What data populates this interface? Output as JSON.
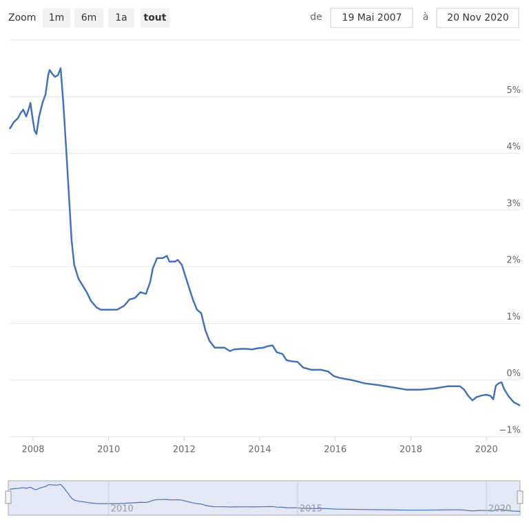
{
  "toolbar": {
    "zoom_label": "Zoom",
    "buttons": [
      "1m",
      "6m",
      "1a",
      "tout"
    ],
    "selected": 3,
    "from_label": "de",
    "from": "19 Mai 2007",
    "to_label": "à",
    "to": "20 Nov 2020"
  },
  "chart_data": {
    "type": "line",
    "x": [
      2007.38,
      2007.49,
      2007.6,
      2007.67,
      2007.74,
      2007.82,
      2007.89,
      2007.93,
      2007.98,
      2008.04,
      2008.09,
      2008.16,
      2008.25,
      2008.33,
      2008.4,
      2008.44,
      2008.51,
      2008.58,
      2008.66,
      2008.73,
      2008.8,
      2008.88,
      2008.95,
      2009.02,
      2009.09,
      2009.2,
      2009.31,
      2009.42,
      2009.53,
      2009.68,
      2009.79,
      2009.93,
      2010.08,
      2010.22,
      2010.41,
      2010.55,
      2010.7,
      2010.84,
      2010.99,
      2011.1,
      2011.17,
      2011.28,
      2011.43,
      2011.54,
      2011.61,
      2011.76,
      2011.83,
      2011.94,
      2012.08,
      2012.23,
      2012.34,
      2012.45,
      2012.56,
      2012.67,
      2012.81,
      2012.96,
      2013.07,
      2013.21,
      2013.32,
      2013.51,
      2013.65,
      2013.8,
      2013.94,
      2014.09,
      2014.23,
      2014.34,
      2014.45,
      2014.6,
      2014.71,
      2014.85,
      2015.0,
      2015.15,
      2015.37,
      2015.63,
      2015.81,
      2015.96,
      2016.1,
      2016.43,
      2016.79,
      2017.15,
      2017.52,
      2017.88,
      2018.25,
      2018.61,
      2018.98,
      2019.3,
      2019.41,
      2019.52,
      2019.63,
      2019.74,
      2019.89,
      2020.0,
      2020.11,
      2020.18,
      2020.25,
      2020.32,
      2020.4,
      2020.47,
      2020.58,
      2020.72,
      2020.89
    ],
    "series": [
      {
        "color": "#4572b4",
        "values": [
          4.43,
          4.55,
          4.62,
          4.71,
          4.77,
          4.65,
          4.79,
          4.89,
          4.65,
          4.4,
          4.34,
          4.65,
          4.89,
          5.04,
          5.38,
          5.47,
          5.4,
          5.35,
          5.38,
          5.5,
          4.89,
          4.04,
          3.25,
          2.46,
          2.03,
          1.79,
          1.67,
          1.55,
          1.4,
          1.28,
          1.24,
          1.24,
          1.24,
          1.24,
          1.31,
          1.42,
          1.45,
          1.55,
          1.52,
          1.73,
          1.97,
          2.15,
          2.15,
          2.19,
          2.09,
          2.09,
          2.12,
          2.03,
          1.73,
          1.42,
          1.24,
          1.18,
          0.88,
          0.69,
          0.57,
          0.57,
          0.57,
          0.51,
          0.54,
          0.55,
          0.55,
          0.54,
          0.56,
          0.57,
          0.6,
          0.61,
          0.49,
          0.46,
          0.35,
          0.33,
          0.32,
          0.22,
          0.18,
          0.18,
          0.15,
          0.07,
          0.04,
          0.0,
          -0.06,
          -0.09,
          -0.13,
          -0.17,
          -0.17,
          -0.15,
          -0.11,
          -0.11,
          -0.17,
          -0.28,
          -0.36,
          -0.3,
          -0.27,
          -0.26,
          -0.28,
          -0.34,
          -0.1,
          -0.06,
          -0.04,
          -0.16,
          -0.28,
          -0.39,
          -0.45
        ]
      }
    ],
    "xlim": [
      2007.38,
      2020.89
    ],
    "xticks": [
      2008,
      2010,
      2012,
      2014,
      2016,
      2018,
      2020
    ],
    "ylim": [
      -1,
      6
    ],
    "yticks": [
      {
        "value": -1,
        "label": "−1%"
      },
      {
        "value": 0,
        "label": "0%"
      },
      {
        "value": 1,
        "label": "1%"
      },
      {
        "value": 2,
        "label": "2%"
      },
      {
        "value": 3,
        "label": "3%"
      },
      {
        "value": 4,
        "label": "4%"
      },
      {
        "value": 5,
        "label": "5%"
      }
    ],
    "grid": true,
    "navigator_xticks": [
      2010,
      2015,
      2020
    ]
  }
}
